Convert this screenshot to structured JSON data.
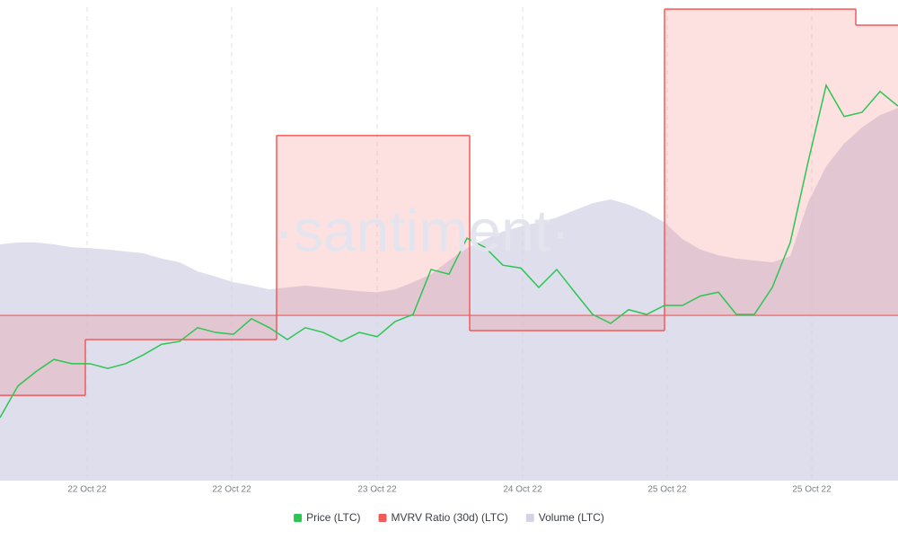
{
  "chart_data": {
    "type": "line",
    "watermark": "·santiment·",
    "xlim": [
      0,
      100
    ],
    "ylim": [
      0,
      100
    ],
    "xticks": [
      {
        "value": 9.7,
        "label": "22 Oct 22"
      },
      {
        "value": 25.8,
        "label": "22 Oct 22"
      },
      {
        "value": 42.0,
        "label": "23 Oct 22"
      },
      {
        "value": 58.2,
        "label": "24 Oct 22"
      },
      {
        "value": 74.3,
        "label": "25 Oct 22"
      },
      {
        "value": 90.4,
        "label": "25 Oct 22"
      }
    ],
    "grid": true,
    "legend": "bottom",
    "x": [
      0,
      2,
      4,
      6,
      8,
      10,
      12,
      14,
      16,
      18,
      20,
      22,
      24,
      26,
      28,
      30,
      32,
      34,
      36,
      38,
      40,
      42,
      44,
      46,
      48,
      50,
      52,
      54,
      56,
      58,
      60,
      62,
      64,
      66,
      68,
      70,
      72,
      74,
      76,
      78,
      80,
      82,
      84,
      86,
      88,
      90,
      92,
      94,
      96,
      98,
      100
    ],
    "series": [
      {
        "name": "Price (LTC)",
        "color": "#2cc653",
        "kind": "line",
        "values": [
          13.3,
          20,
          23,
          25.6,
          24.7,
          24.7,
          23.7,
          24.7,
          26.6,
          28.8,
          29.4,
          32.3,
          31.3,
          30.9,
          34.2,
          32.3,
          29.8,
          32.3,
          31.3,
          29.4,
          31.3,
          30.4,
          33.6,
          35.1,
          44.6,
          43.6,
          51.2,
          49.3,
          45.5,
          44.9,
          40.8,
          44.6,
          39.8,
          35.1,
          33.2,
          36.1,
          35.1,
          37.0,
          37.0,
          39.0,
          39.8,
          35.1,
          35.1,
          40.8,
          50.3,
          67.4,
          83.5,
          76.9,
          77.8,
          82.2,
          79.1
        ]
      },
      {
        "name": "MVRV Ratio (30d) (LTC)",
        "color": "#f25a5a",
        "kind": "step",
        "baseline": 34.9,
        "x": [
          0,
          9.5,
          30.8,
          52.3,
          74,
          95.3
        ],
        "values": [
          18.0,
          29.8,
          72.9,
          31.7,
          99.6,
          96.2
        ]
      },
      {
        "name": "Volume (LTC)",
        "color": "#d3d3e6",
        "kind": "area",
        "values": [
          49.9,
          50.3,
          50.3,
          49.9,
          49.3,
          49.1,
          48.8,
          48.4,
          48.0,
          46.9,
          46.1,
          44.2,
          43.1,
          41.9,
          41.2,
          40.4,
          40.8,
          41.2,
          40.8,
          40.4,
          40.0,
          39.8,
          40.4,
          41.9,
          43.6,
          46.5,
          49.1,
          51.0,
          52.6,
          53.7,
          54.5,
          55.6,
          57.1,
          58.6,
          59.4,
          58.3,
          56.7,
          54.5,
          51.0,
          48.8,
          47.6,
          46.9,
          46.5,
          46.1,
          47.4,
          58.8,
          66.4,
          71.2,
          74.6,
          77.2,
          78.7
        ]
      }
    ]
  }
}
